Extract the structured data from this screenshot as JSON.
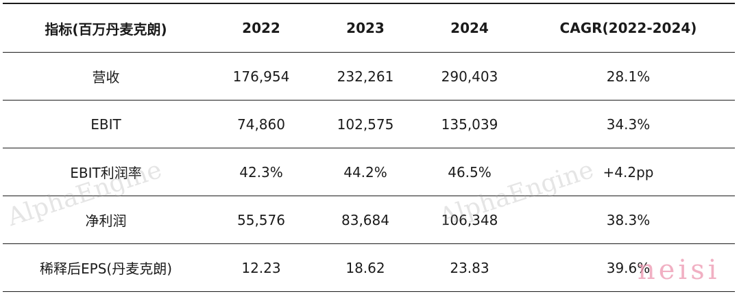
{
  "table": {
    "headers": [
      "指标(百万丹麦克朗)",
      "2022",
      "2023",
      "2024",
      "CAGR(2022-2024)"
    ],
    "rows": [
      [
        "营收",
        "176,954",
        "232,261",
        "290,403",
        "28.1%"
      ],
      [
        "EBIT",
        "74,860",
        "102,575",
        "135,039",
        "34.3%"
      ],
      [
        "EBIT利润率",
        "42.3%",
        "44.2%",
        "46.5%",
        "+4.2pp"
      ],
      [
        "净利润",
        "55,576",
        "83,684",
        "106,348",
        "38.3%"
      ],
      [
        "稀释后EPS(丹麦克朗)",
        "12.23",
        "18.62",
        "23.83",
        "39.6%"
      ]
    ]
  },
  "watermarks": [
    "AlphaEngine",
    "AlphaEngine"
  ],
  "signature": "neisi"
}
